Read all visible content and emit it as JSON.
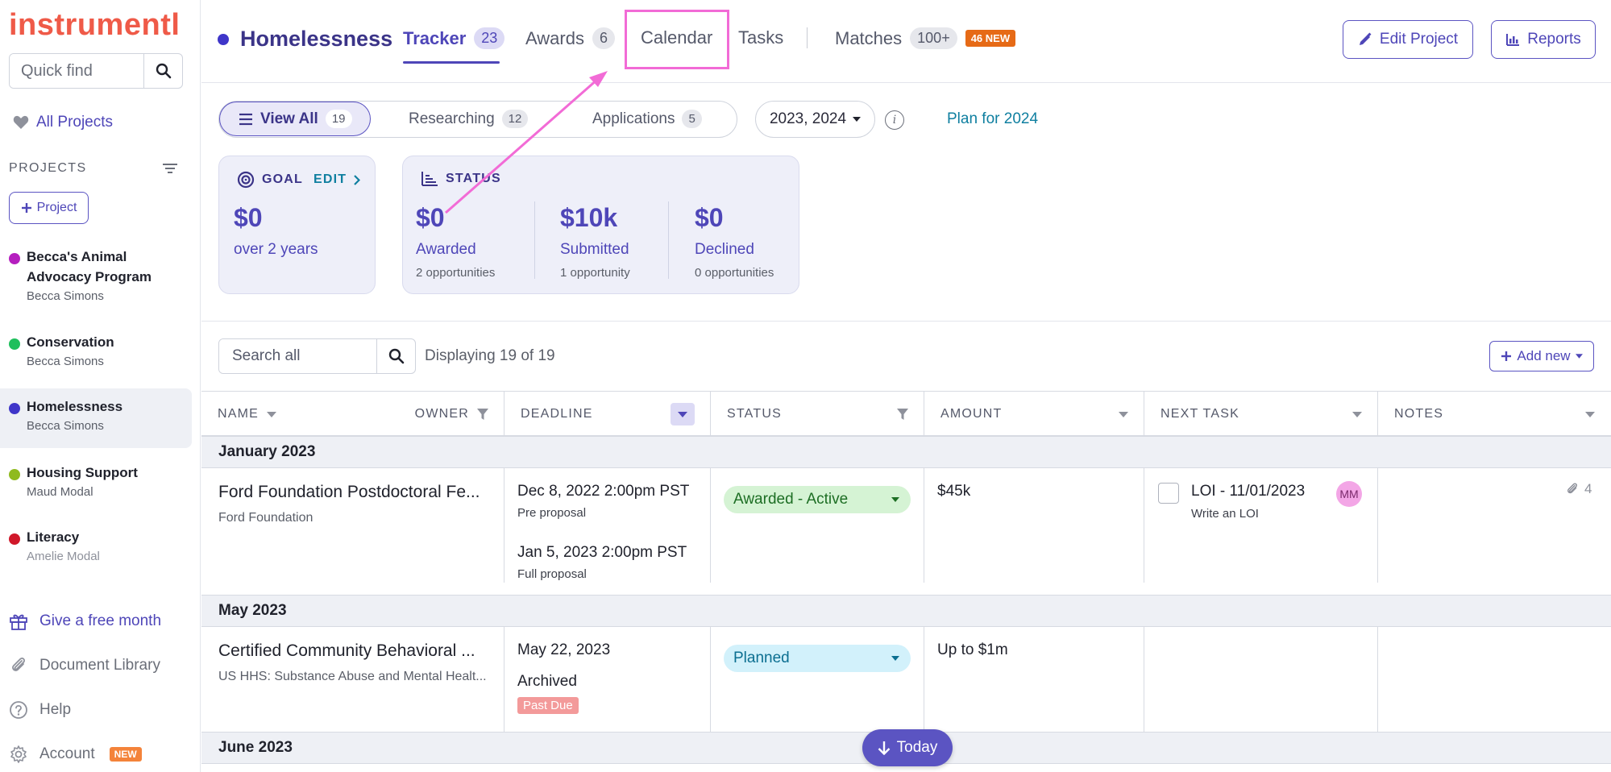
{
  "sidebar": {
    "logo": "instrumentl",
    "quickfind_placeholder": "Quick find",
    "all_projects": "All Projects",
    "projects_heading": "PROJECTS",
    "add_project": "Project",
    "projects": [
      {
        "name": "Becca's Animal Advocacy Program",
        "owner": "Becca Simons",
        "color": "#b51fbf"
      },
      {
        "name": "Conservation",
        "owner": "Becca Simons",
        "color": "#1fbf5c"
      },
      {
        "name": "Homelessness",
        "owner": "Becca Simons",
        "color": "#3f36c9"
      },
      {
        "name": "Housing Support",
        "owner": "Maud Modal",
        "color": "#8fba1f"
      },
      {
        "name": "Literacy",
        "owner": "Amelie Modal",
        "color": "#d0182a"
      }
    ],
    "links": {
      "free_month": "Give a free month",
      "document_library": "Document Library",
      "help": "Help",
      "account": "Account",
      "account_badge": "NEW"
    }
  },
  "header": {
    "project_title": "Homelessness",
    "tabs": [
      {
        "label": "Tracker",
        "count": "23"
      },
      {
        "label": "Awards",
        "count": "6"
      },
      {
        "label": "Calendar",
        "count": ""
      },
      {
        "label": "Tasks",
        "count": ""
      },
      {
        "label": "Matches",
        "count": "100+"
      }
    ],
    "matches_new_badge": "46 NEW",
    "edit_project": "Edit Project",
    "reports": "Reports"
  },
  "filters": {
    "segments": [
      {
        "label": "View All",
        "count": "19"
      },
      {
        "label": "Researching",
        "count": "12"
      },
      {
        "label": "Applications",
        "count": "5"
      }
    ],
    "years": "2023, 2024",
    "plan_link": "Plan for 2024"
  },
  "goal_card": {
    "heading": "GOAL",
    "edit": "EDIT",
    "value": "$0",
    "label": "over 2 years"
  },
  "status_card": {
    "heading": "STATUS",
    "stats": [
      {
        "value": "$0",
        "label": "Awarded",
        "sub": "2 opportunities"
      },
      {
        "value": "$10k",
        "label": "Submitted",
        "sub": "1 opportunity"
      },
      {
        "value": "$0",
        "label": "Declined",
        "sub": "0 opportunities"
      }
    ]
  },
  "toolbar": {
    "search_placeholder": "Search all",
    "displaying": "Displaying 19 of 19",
    "add_new": "Add new"
  },
  "table": {
    "columns": {
      "name": "NAME",
      "owner": "OWNER",
      "deadline": "DEADLINE",
      "status": "STATUS",
      "amount": "AMOUNT",
      "next_task": "NEXT TASK",
      "notes": "NOTES"
    },
    "groups": [
      "January 2023",
      "May 2023",
      "June 2023"
    ],
    "rows": [
      {
        "name": "Ford Foundation Postdoctoral Fe...",
        "funder": "Ford Foundation",
        "deadline1": "Dec 8, 2022 2:00pm PST",
        "deadline1_sub": "Pre proposal",
        "deadline2": "Jan 5, 2023 2:00pm PST",
        "deadline2_sub": "Full proposal",
        "status": "Awarded - Active",
        "amount": "$45k",
        "task_title": "LOI - 11/01/2023",
        "task_sub": "Write an LOI",
        "task_avatar": "MM",
        "attachments": "4"
      },
      {
        "name": "Certified Community Behavioral ...",
        "funder": "US HHS: Substance Abuse and Mental Healt...",
        "deadline1": "May 22, 2023",
        "archived": "Archived",
        "past_due": "Past Due",
        "status": "Planned",
        "amount": "Up to $1m"
      }
    ]
  },
  "today_button": "Today",
  "colors": {
    "brand": "#ef5a48",
    "accent": "#4e46b8",
    "highlight": "#f26bd6"
  }
}
